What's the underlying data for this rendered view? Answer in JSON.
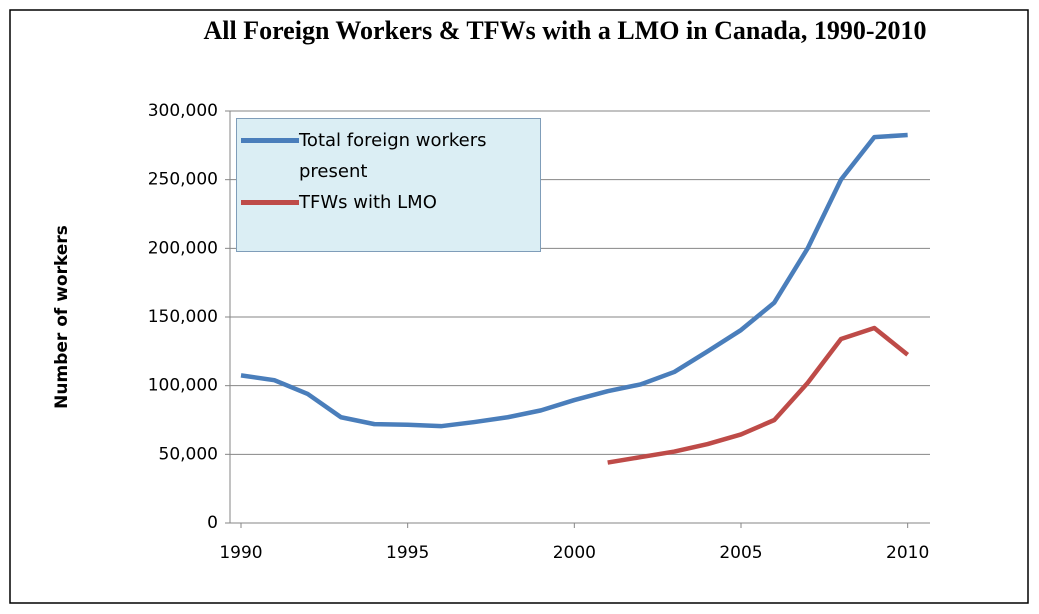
{
  "chart_data": {
    "type": "line",
    "title": "All Foreign Workers & TFWs with a LMO in Canada, 1990-2010",
    "y_label": "Number of workers",
    "x": [
      1990,
      1991,
      1992,
      1993,
      1994,
      1995,
      1996,
      1997,
      1998,
      1999,
      2000,
      2001,
      2002,
      2003,
      2004,
      2005,
      2006,
      2007,
      2008,
      2009,
      2010
    ],
    "series": [
      {
        "name": "Total foreign workers present",
        "color": "#4a7ebb",
        "values": [
          107500,
          104000,
          94000,
          77000,
          72000,
          71500,
          70500,
          73500,
          77000,
          82000,
          89500,
          96000,
          101000,
          110000,
          125000,
          140500,
          160500,
          200000,
          250000,
          281000,
          282500
        ]
      },
      {
        "name": "TFWs with LMO",
        "color": "#be4b48",
        "values": [
          null,
          null,
          null,
          null,
          null,
          null,
          null,
          null,
          null,
          null,
          null,
          44000,
          48000,
          52000,
          57500,
          64500,
          75000,
          102000,
          134000,
          142000,
          122500
        ]
      }
    ],
    "xlim": [
      1989.67,
      2010.67
    ],
    "xticks": [
      1990,
      1995,
      2000,
      2005,
      2010
    ],
    "ylim": [
      0,
      300000
    ],
    "yticks": [
      0,
      {
        "value": 50000,
        "label": "50,000"
      },
      {
        "value": 100000,
        "label": "100,000"
      },
      {
        "value": 150000,
        "label": "150,000"
      },
      {
        "value": 200000,
        "label": "200,000"
      },
      {
        "value": 250000,
        "label": "250,000"
      },
      {
        "value": 300000,
        "label": "300,000"
      }
    ],
    "grid": true,
    "legend": "top-left"
  }
}
